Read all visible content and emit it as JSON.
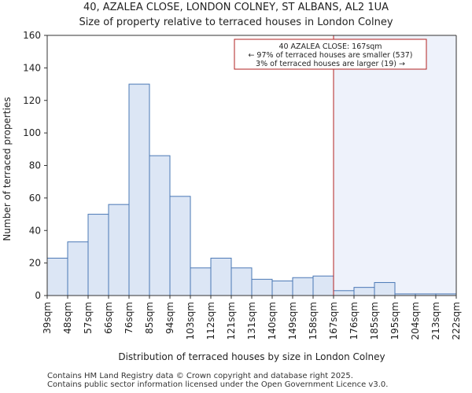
{
  "chart_data": {
    "type": "bar",
    "title": "40, AZALEA CLOSE, LONDON COLNEY, ST ALBANS, AL2 1UA",
    "subtitle": "Size of property relative to terraced houses in London Colney",
    "xlabel": "Distribution of terraced houses by size in London Colney",
    "ylabel": "Number of terraced properties",
    "ylim": [
      0,
      160
    ],
    "yticks": [
      0,
      20,
      40,
      60,
      80,
      100,
      120,
      140,
      160
    ],
    "bin_edges": [
      "39sqm",
      "48sqm",
      "57sqm",
      "66sqm",
      "76sqm",
      "85sqm",
      "94sqm",
      "103sqm",
      "112sqm",
      "121sqm",
      "131sqm",
      "140sqm",
      "149sqm",
      "158sqm",
      "167sqm",
      "176sqm",
      "185sqm",
      "195sqm",
      "204sqm",
      "213sqm",
      "222sqm"
    ],
    "values": [
      23,
      33,
      50,
      56,
      130,
      86,
      61,
      17,
      23,
      17,
      10,
      9,
      11,
      12,
      3,
      5,
      8,
      1,
      1,
      1
    ],
    "marker_index": 14,
    "marker_value": "167sqm",
    "annotation": {
      "line1": "40 AZALEA CLOSE: 167sqm",
      "line2": "← 97% of terraced houses are smaller (537)",
      "line3": "3% of terraced houses are larger (19) →"
    },
    "colors": {
      "bar_fill": "#dce6f5",
      "bar_stroke": "#4a78b5",
      "marker": "#b22222",
      "highlight": "#eef2fb"
    }
  },
  "footer": {
    "line1": "Contains HM Land Registry data © Crown copyright and database right 2025.",
    "line2": "Contains public sector information licensed under the Open Government Licence v3.0."
  }
}
